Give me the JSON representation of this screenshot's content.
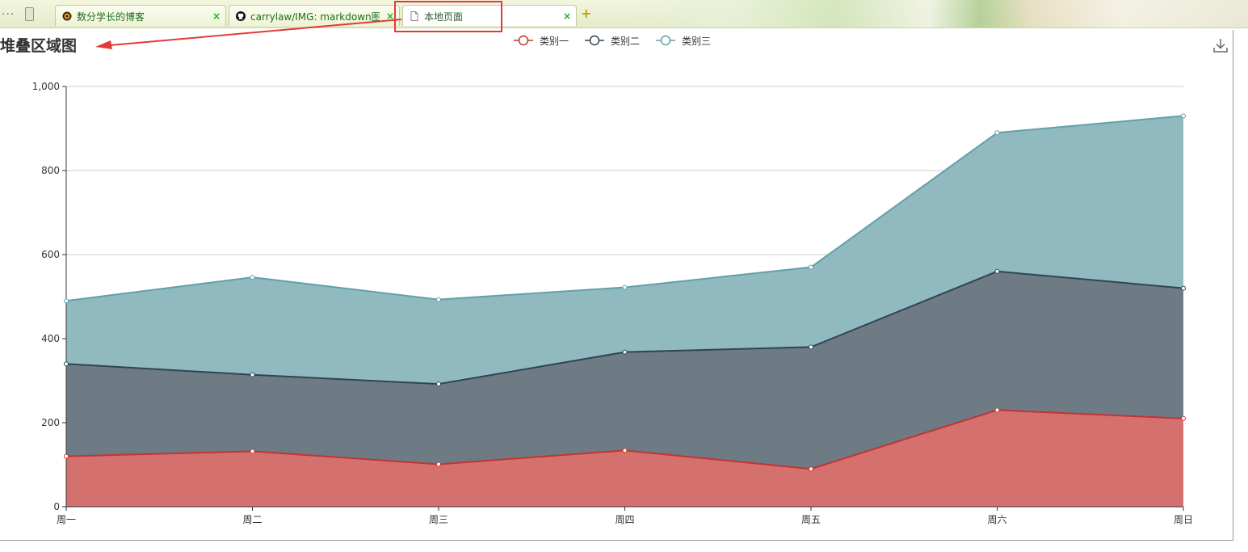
{
  "browser": {
    "tabs": [
      {
        "label": "数分学长的博客",
        "icon": "blog-favicon-icon",
        "active": false
      },
      {
        "label": "carrylaw/IMG: markdown图",
        "icon": "github-icon",
        "active": false
      },
      {
        "label": "本地页面",
        "icon": "page-icon",
        "active": true
      }
    ],
    "close_glyph": "×",
    "new_tab_glyph": "+",
    "more_glyph": "..."
  },
  "chart_data": {
    "type": "area",
    "title": "堆叠区域图",
    "stacked": true,
    "categories": [
      "周一",
      "周二",
      "周三",
      "周四",
      "周五",
      "周六",
      "周日"
    ],
    "series": [
      {
        "name": "类别一",
        "color": "#c23531",
        "fill": "#d4706e",
        "values": [
          120,
          132,
          101,
          134,
          90,
          230,
          210
        ]
      },
      {
        "name": "类别二",
        "color": "#2f4554",
        "fill": "#6e7b85",
        "values": [
          220,
          182,
          191,
          234,
          290,
          330,
          310
        ]
      },
      {
        "name": "类别三",
        "color": "#61a0a8",
        "fill": "#91b9c0",
        "values": [
          150,
          232,
          201,
          154,
          190,
          330,
          410
        ]
      }
    ],
    "ylim": [
      0,
      1000
    ],
    "yticks": [
      "0",
      "200",
      "400",
      "600",
      "800",
      "1,000"
    ],
    "ytick_values": [
      0,
      200,
      400,
      600,
      800,
      1000
    ],
    "grid": true,
    "legend_position": "top-center"
  },
  "annotation": {
    "color": "#e23a3a"
  }
}
